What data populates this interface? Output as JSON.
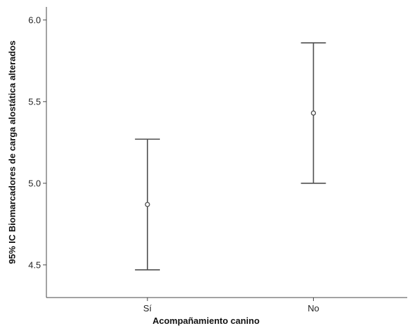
{
  "chart_data": {
    "type": "scatter",
    "subtype": "error-bar",
    "title": "",
    "xlabel": "Acompañamiento canino",
    "ylabel": "95% IC Biomarcadores de carga alostática alterados",
    "categories": [
      "Sí",
      "No"
    ],
    "series": [
      {
        "means": [
          4.87,
          5.43
        ],
        "lower": [
          4.47,
          5.0
        ],
        "upper": [
          5.27,
          5.86
        ]
      }
    ],
    "ylim": [
      4.3,
      6.08
    ],
    "yticks": [
      4.5,
      5.0,
      5.5,
      6.0
    ],
    "ytick_labels": [
      "4.5",
      "5.0",
      "5.5",
      "6.0"
    ],
    "grid": false,
    "legend": "none",
    "colors": {
      "axis": "#444444",
      "bar": "#4d4d4d",
      "marker": "#4d4d4d"
    }
  }
}
